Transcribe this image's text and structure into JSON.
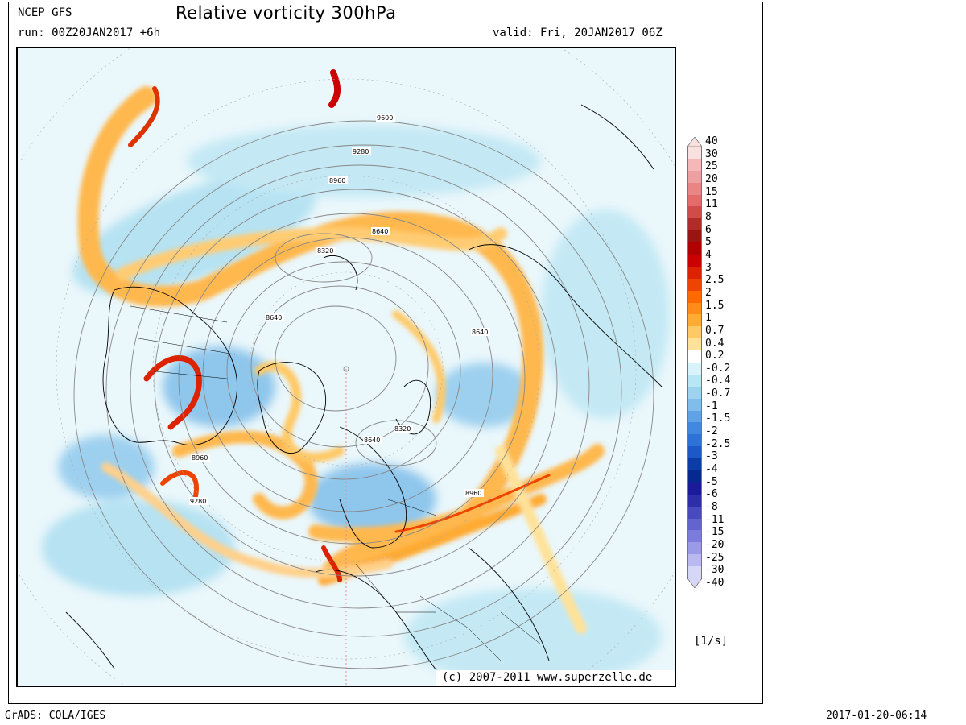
{
  "header": {
    "source": "NCEP GFS",
    "title": "Relative vorticity 300hPa",
    "run": "run: 00Z20JAN2017 +6h",
    "valid": "valid: Fri, 20JAN2017 06Z"
  },
  "map": {
    "contour_labels": [
      "9600",
      "9280",
      "8960",
      "8640",
      "8320",
      "8640",
      "8640",
      "8320",
      "8640",
      "8960",
      "8960",
      "9280"
    ],
    "copyright": "(c) 2007-2011 www.superzelle.de"
  },
  "legend": {
    "units": "[1/s]",
    "levels": [
      "40",
      "30",
      "25",
      "20",
      "15",
      "11",
      "8",
      "6",
      "5",
      "4",
      "3",
      "2.5",
      "2",
      "1.5",
      "1",
      "0.7",
      "0.4",
      "0.2",
      "-0.2",
      "-0.4",
      "-0.7",
      "-1",
      "-1.5",
      "-2",
      "-2.5",
      "-3",
      "-4",
      "-5",
      "-6",
      "-8",
      "-11",
      "-15",
      "-20",
      "-25",
      "-30",
      "-40"
    ],
    "colors": [
      "#fbe0e0",
      "#f4b8b8",
      "#ee9f9f",
      "#e98585",
      "#e56a6a",
      "#d24b4b",
      "#b22b2b",
      "#9b1414",
      "#b00000",
      "#cc0000",
      "#dd2200",
      "#ee4400",
      "#ff6a00",
      "#ff8c1a",
      "#ffaa33",
      "#ffc966",
      "#ffe299",
      "#ffffff",
      "#d9f3fb",
      "#b8e6f5",
      "#9dd3ef",
      "#80bdea",
      "#5fa3e6",
      "#4189e0",
      "#2d72d8",
      "#1d58c8",
      "#0c3ca8",
      "#062890",
      "#1a1a9a",
      "#2e2eaa",
      "#4a4ac0",
      "#6464d0",
      "#7c7cde",
      "#9a9ae6",
      "#b9b9ef",
      "#d6d6f7"
    ]
  },
  "footer": {
    "left": "GrADS: COLA/IGES",
    "right": "2017-01-20-06:14"
  }
}
